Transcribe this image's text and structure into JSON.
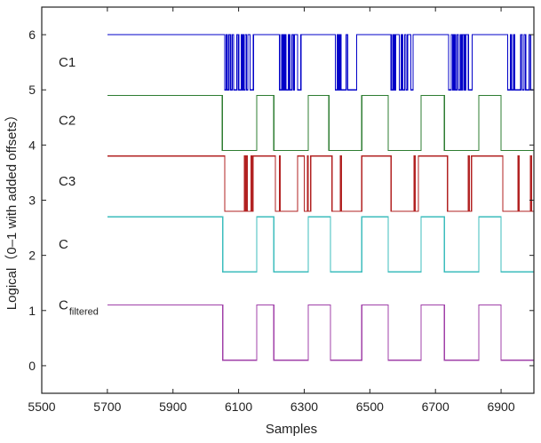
{
  "chart_data": {
    "type": "line",
    "title": "",
    "xlabel": "Samples",
    "ylabel": "Logical（0–1 with added offsets）",
    "xlim": [
      5500,
      7000
    ],
    "ylim": [
      -0.5,
      6.5
    ],
    "xticks": [
      5500,
      5700,
      5900,
      6100,
      6300,
      6500,
      6700,
      6900
    ],
    "yticks": [
      0,
      1,
      2,
      3,
      4,
      5,
      6
    ],
    "grid": false,
    "legend": "inline-left",
    "series": [
      {
        "name": "C1",
        "label_main": "C",
        "label_suffix": "1",
        "label_sub": "",
        "color": "#0000c8",
        "offset": 5,
        "label_y": 5.5,
        "steps": [
          [
            5700,
            1
          ],
          [
            6058,
            0
          ],
          [
            6062,
            1
          ],
          [
            6065,
            0
          ],
          [
            6070,
            1
          ],
          [
            6075,
            0
          ],
          [
            6080,
            1
          ],
          [
            6085,
            0
          ],
          [
            6095,
            1
          ],
          [
            6100,
            0
          ],
          [
            6108,
            1
          ],
          [
            6110,
            0
          ],
          [
            6113,
            1
          ],
          [
            6116,
            0
          ],
          [
            6120,
            1
          ],
          [
            6124,
            0
          ],
          [
            6128,
            1
          ],
          [
            6135,
            0
          ],
          [
            6145,
            1
          ],
          [
            6225,
            0
          ],
          [
            6232,
            1
          ],
          [
            6236,
            0
          ],
          [
            6240,
            1
          ],
          [
            6244,
            0
          ],
          [
            6252,
            1
          ],
          [
            6256,
            0
          ],
          [
            6262,
            1
          ],
          [
            6266,
            0
          ],
          [
            6270,
            1
          ],
          [
            6280,
            0
          ],
          [
            6290,
            1
          ],
          [
            6395,
            0
          ],
          [
            6400,
            1
          ],
          [
            6404,
            0
          ],
          [
            6408,
            1
          ],
          [
            6412,
            0
          ],
          [
            6428,
            1
          ],
          [
            6433,
            0
          ],
          [
            6460,
            1
          ],
          [
            6565,
            0
          ],
          [
            6570,
            1
          ],
          [
            6574,
            0
          ],
          [
            6578,
            1
          ],
          [
            6590,
            0
          ],
          [
            6596,
            1
          ],
          [
            6600,
            0
          ],
          [
            6606,
            1
          ],
          [
            6610,
            0
          ],
          [
            6615,
            1
          ],
          [
            6625,
            0
          ],
          [
            6632,
            1
          ],
          [
            6740,
            0
          ],
          [
            6748,
            1
          ],
          [
            6752,
            0
          ],
          [
            6756,
            1
          ],
          [
            6760,
            0
          ],
          [
            6765,
            1
          ],
          [
            6770,
            0
          ],
          [
            6775,
            1
          ],
          [
            6779,
            0
          ],
          [
            6783,
            1
          ],
          [
            6788,
            0
          ],
          [
            6792,
            1
          ],
          [
            6800,
            0
          ],
          [
            6812,
            1
          ],
          [
            6920,
            0
          ],
          [
            6928,
            1
          ],
          [
            6932,
            0
          ],
          [
            6938,
            1
          ],
          [
            6942,
            0
          ],
          [
            6960,
            1
          ],
          [
            6965,
            0
          ],
          [
            6970,
            1
          ],
          [
            6975,
            0
          ],
          [
            6985,
            1
          ],
          [
            6990,
            0
          ],
          [
            7000,
            0
          ]
        ]
      },
      {
        "name": "C2",
        "label_main": "C",
        "label_suffix": "2",
        "label_sub": "",
        "color": "#2e7d32",
        "offset": 3.9,
        "label_y": 4.45,
        "steps": [
          [
            5700,
            1
          ],
          [
            6050,
            0
          ],
          [
            6155,
            1
          ],
          [
            6207,
            0
          ],
          [
            6312,
            1
          ],
          [
            6375,
            0
          ],
          [
            6475,
            1
          ],
          [
            6556,
            0
          ],
          [
            6656,
            1
          ],
          [
            6727,
            0
          ],
          [
            6832,
            1
          ],
          [
            6900,
            0
          ],
          [
            7000,
            0
          ]
        ]
      },
      {
        "name": "C3",
        "label_main": "C",
        "label_suffix": "3",
        "label_sub": "",
        "color": "#b22222",
        "offset": 2.8,
        "label_y": 3.35,
        "steps": [
          [
            5700,
            1
          ],
          [
            6058,
            0
          ],
          [
            6118,
            1
          ],
          [
            6120,
            0
          ],
          [
            6123,
            1
          ],
          [
            6126,
            0
          ],
          [
            6138,
            1
          ],
          [
            6141,
            0
          ],
          [
            6144,
            1
          ],
          [
            6212,
            0
          ],
          [
            6225,
            1
          ],
          [
            6227,
            0
          ],
          [
            6280,
            1
          ],
          [
            6300,
            0
          ],
          [
            6310,
            1
          ],
          [
            6312,
            0
          ],
          [
            6320,
            1
          ],
          [
            6385,
            0
          ],
          [
            6410,
            1
          ],
          [
            6413,
            0
          ],
          [
            6475,
            1
          ],
          [
            6565,
            0
          ],
          [
            6635,
            1
          ],
          [
            6638,
            0
          ],
          [
            6648,
            1
          ],
          [
            6737,
            0
          ],
          [
            6800,
            1
          ],
          [
            6803,
            0
          ],
          [
            6810,
            1
          ],
          [
            6905,
            0
          ],
          [
            6952,
            1
          ],
          [
            6955,
            0
          ],
          [
            6990,
            1
          ],
          [
            6993,
            0
          ],
          [
            7000,
            0
          ]
        ]
      },
      {
        "name": "C",
        "label_main": "C",
        "label_suffix": "",
        "label_sub": "",
        "color": "#3dbdbd",
        "offset": 1.7,
        "label_y": 2.2,
        "steps": [
          [
            5700,
            1
          ],
          [
            6052,
            0
          ],
          [
            6155,
            1
          ],
          [
            6207,
            0
          ],
          [
            6312,
            1
          ],
          [
            6380,
            0
          ],
          [
            6475,
            1
          ],
          [
            6556,
            0
          ],
          [
            6656,
            1
          ],
          [
            6727,
            0
          ],
          [
            6832,
            1
          ],
          [
            6900,
            0
          ],
          [
            7000,
            0
          ]
        ]
      },
      {
        "name": "Cfiltered",
        "label_main": "C",
        "label_suffix": "",
        "label_sub": "filtered",
        "color": "#a040a8",
        "offset": 0.1,
        "label_y": 1.1,
        "steps": [
          [
            5700,
            1
          ],
          [
            6052,
            0
          ],
          [
            6155,
            1
          ],
          [
            6207,
            0
          ],
          [
            6312,
            1
          ],
          [
            6380,
            0
          ],
          [
            6475,
            1
          ],
          [
            6556,
            0
          ],
          [
            6656,
            1
          ],
          [
            6727,
            0
          ],
          [
            6832,
            1
          ],
          [
            6900,
            0
          ],
          [
            7000,
            0
          ]
        ]
      }
    ]
  }
}
